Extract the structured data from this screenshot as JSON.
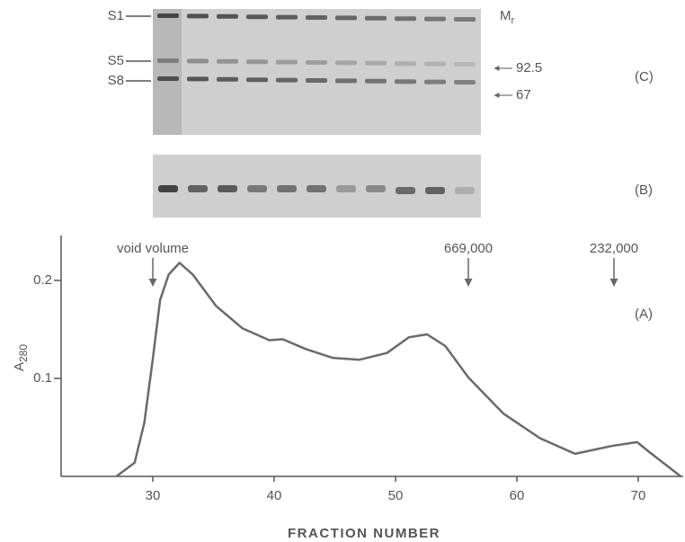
{
  "gels": {
    "panel_c": {
      "bands": [
        "S1",
        "S5",
        "S8"
      ],
      "marker_symbol": "M",
      "marker_subscript": "r",
      "markers": [
        "92.5",
        "67"
      ],
      "label": "(C)"
    },
    "panel_b": {
      "label": "(B)"
    }
  },
  "chart_data": {
    "type": "line",
    "panel_label": "(A)",
    "x_label": "FRACTION NUMBER",
    "y_label": "A",
    "y_label_subscript": "280",
    "x": [
      27.0,
      28.5,
      29.3,
      30.0,
      30.6,
      31.3,
      32.2,
      33.3,
      35.2,
      37.4,
      39.6,
      40.7,
      42.6,
      44.8,
      47.0,
      49.3,
      51.1,
      52.6,
      54.1,
      56.0,
      58.9,
      61.9,
      64.8,
      67.8,
      69.9,
      71.1,
      73.5
    ],
    "values": [
      0,
      0.014,
      0.055,
      0.12,
      0.18,
      0.206,
      0.218,
      0.206,
      0.174,
      0.151,
      0.139,
      0.14,
      0.13,
      0.121,
      0.119,
      0.126,
      0.142,
      0.145,
      0.133,
      0.101,
      0.064,
      0.039,
      0.023,
      0.031,
      0.035,
      0.023,
      0
    ],
    "color": "#6a6a6a",
    "xlim": [
      22.5,
      74
    ],
    "xticks": [
      30,
      40,
      50,
      60,
      70
    ],
    "ylim": [
      0,
      0.25
    ],
    "yticks": [
      0.1,
      0.2
    ],
    "annotations": [
      {
        "text": "void volume",
        "x": 30
      },
      {
        "text": "669,000",
        "x": 56
      },
      {
        "text": "232,000",
        "x": 68
      }
    ]
  }
}
